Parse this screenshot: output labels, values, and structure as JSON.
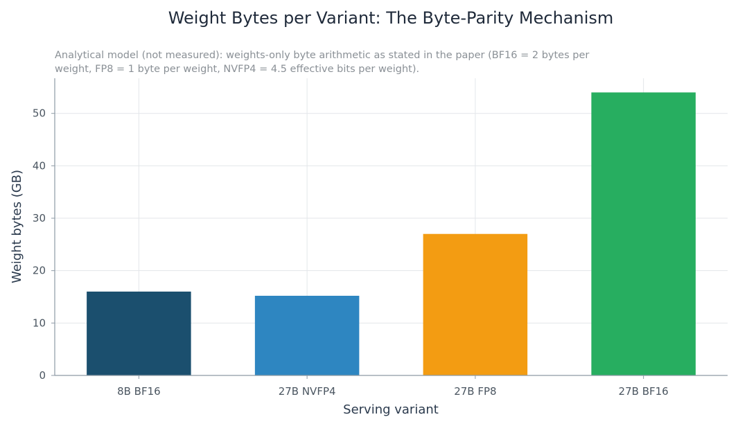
{
  "chart_data": {
    "type": "bar",
    "title": "Weight Bytes per Variant: The Byte-Parity Mechanism",
    "subtitle_lines": [
      "Analytical model (not measured): weights-only byte arithmetic as stated in the paper (BF16 = 2 bytes per",
      "weight, FP8 = 1 byte per weight, NVFP4 = 4.5 effective bits per weight)."
    ],
    "xlabel": "Serving variant",
    "ylabel": "Weight bytes (GB)",
    "categories": [
      "8B BF16",
      "27B NVFP4",
      "27B FP8",
      "27B BF16"
    ],
    "values": [
      16,
      15.2,
      27,
      54
    ],
    "colors": [
      "#1b4f6e",
      "#2e86c1",
      "#f39c12",
      "#27ae60"
    ],
    "yticks": [
      0,
      10,
      20,
      30,
      40,
      50
    ],
    "ylim": [
      0,
      56.7
    ],
    "grid": true,
    "legend": "none"
  }
}
